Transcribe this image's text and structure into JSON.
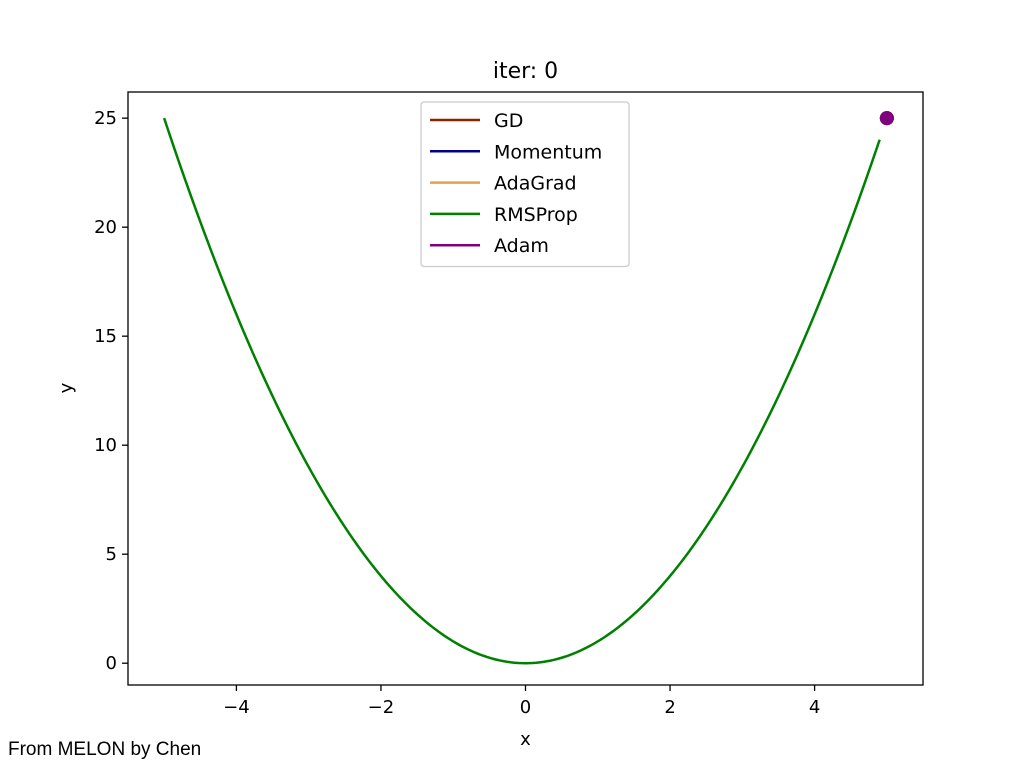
{
  "footer": {
    "credit": "From MELON by Chen"
  },
  "chart_data": {
    "type": "line",
    "title": "iter: 0",
    "xlabel": "x",
    "ylabel": "y",
    "xlim": [
      -5.5,
      5.5
    ],
    "ylim": [
      -1.0,
      26.2
    ],
    "xticks": [
      -4,
      -2,
      0,
      2,
      4
    ],
    "xtick_labels": [
      "−4",
      "−2",
      "0",
      "2",
      "4"
    ],
    "yticks": [
      0,
      5,
      10,
      15,
      20,
      25
    ],
    "ytick_labels": [
      "0",
      "5",
      "10",
      "15",
      "20",
      "25"
    ],
    "grid": false,
    "legend_position": "top-center",
    "curve": {
      "x": [
        -5,
        -4.5,
        -4,
        -3.5,
        -3,
        -2.5,
        -2,
        -1.5,
        -1,
        -0.5,
        0,
        0.5,
        1,
        1.5,
        2,
        2.5,
        3,
        3.5,
        4,
        4.5,
        4.9
      ],
      "y": [
        25,
        20.25,
        16,
        12.25,
        9,
        6.25,
        4,
        2.25,
        1,
        0.25,
        0,
        0.25,
        1,
        2.25,
        4,
        6.25,
        9,
        12.25,
        16,
        20.25,
        24.01
      ],
      "color": "#008000"
    },
    "series": [
      {
        "name": "GD",
        "color": "#8b2500",
        "point": [
          5,
          25
        ]
      },
      {
        "name": "Momentum",
        "color": "#00008b",
        "point": [
          5,
          25
        ]
      },
      {
        "name": "AdaGrad",
        "color": "#e6a04a",
        "point": [
          5,
          25
        ]
      },
      {
        "name": "RMSProp",
        "color": "#008000",
        "point": [
          5,
          25
        ]
      },
      {
        "name": "Adam",
        "color": "#800080",
        "point": [
          5,
          25
        ]
      }
    ]
  }
}
